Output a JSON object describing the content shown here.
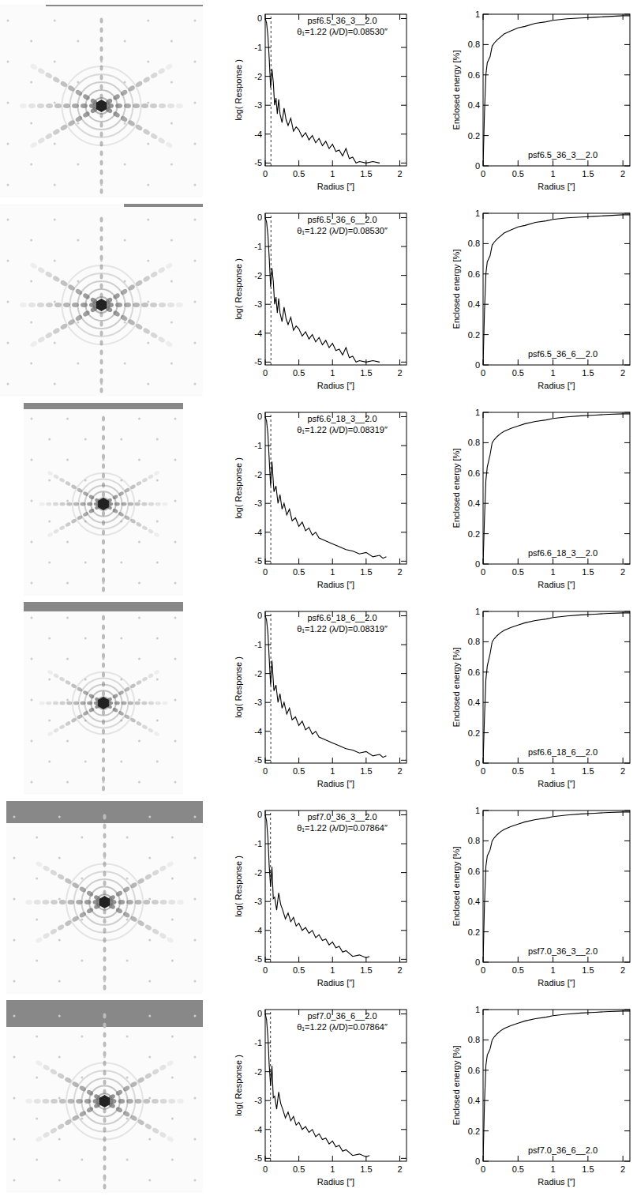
{
  "chart_data": [
    {
      "type": "line",
      "title": "psf6.5_36_3__2.0",
      "subtitle": "θ₁=1.22 (λ/D)=0.08530″",
      "x_label": "Radius   [″]",
      "y_label": "log( Response )",
      "x": [
        0,
        0.02,
        0.04,
        0.06,
        0.08,
        0.1,
        0.12,
        0.14,
        0.16,
        0.18,
        0.2,
        0.22,
        0.25,
        0.28,
        0.31,
        0.34,
        0.38,
        0.42,
        0.46,
        0.5,
        0.55,
        0.6,
        0.65,
        0.7,
        0.75,
        0.8,
        0.85,
        0.9,
        0.95,
        1.0,
        1.05,
        1.1,
        1.15,
        1.2,
        1.25,
        1.3,
        1.35,
        1.4,
        1.5,
        1.6,
        1.7
      ],
      "values": [
        0,
        -0.15,
        -0.6,
        -1.4,
        -2.4,
        -1.75,
        -2.2,
        -3.0,
        -2.75,
        -3.3,
        -2.8,
        -3.3,
        -3.6,
        -3.1,
        -3.5,
        -3.7,
        -3.45,
        -3.9,
        -3.75,
        -3.85,
        -4.1,
        -3.95,
        -4.2,
        -4.05,
        -4.3,
        -4.15,
        -4.4,
        -4.25,
        -4.5,
        -4.35,
        -4.6,
        -4.55,
        -4.75,
        -4.5,
        -4.85,
        -4.8,
        -5.0,
        -4.95,
        -5.0,
        -4.95,
        -5.0
      ],
      "xlim": [
        0,
        2.1
      ],
      "ylim": [
        -5.1,
        0.15
      ],
      "xticks": [
        0,
        0.5,
        1,
        1.5,
        2
      ],
      "yticks": [
        -5,
        -4,
        -3,
        -2,
        -1,
        0
      ],
      "theta_1": 0.0853
    },
    {
      "type": "line",
      "title": "psf6.5_36_3__2.0",
      "x_label": "Radius   [″]",
      "y_label": "Enclosed energy   [%]",
      "x": [
        0,
        0.02,
        0.04,
        0.06,
        0.08,
        0.1,
        0.13,
        0.16,
        0.2,
        0.25,
        0.3,
        0.4,
        0.5,
        0.6,
        0.75,
        0.9,
        1.0,
        1.2,
        1.4,
        1.6,
        1.8,
        2.0,
        2.1
      ],
      "values": [
        0,
        0.35,
        0.6,
        0.68,
        0.7,
        0.72,
        0.79,
        0.81,
        0.83,
        0.85,
        0.87,
        0.89,
        0.91,
        0.92,
        0.94,
        0.95,
        0.96,
        0.97,
        0.975,
        0.98,
        0.985,
        0.99,
        0.99
      ],
      "xlim": [
        0,
        2.1
      ],
      "ylim": [
        0,
        1
      ],
      "xticks": [
        0,
        0.5,
        1,
        1.5,
        2
      ],
      "yticks": [
        0,
        0.2,
        0.4,
        0.6,
        0.8,
        1
      ]
    },
    {
      "type": "line",
      "title": "psf6.5_36_6__2.0",
      "subtitle": "θ₁=1.22 (λ/D)=0.08530″",
      "x_label": "Radius   [″]",
      "y_label": "log( Response )",
      "x": [
        0,
        0.02,
        0.04,
        0.06,
        0.08,
        0.1,
        0.12,
        0.14,
        0.16,
        0.18,
        0.2,
        0.22,
        0.25,
        0.28,
        0.31,
        0.34,
        0.38,
        0.42,
        0.46,
        0.5,
        0.55,
        0.6,
        0.65,
        0.7,
        0.75,
        0.8,
        0.85,
        0.9,
        0.95,
        1.0,
        1.05,
        1.1,
        1.15,
        1.2,
        1.25,
        1.3,
        1.35,
        1.4,
        1.5,
        1.6,
        1.7
      ],
      "values": [
        0,
        -0.15,
        -0.6,
        -1.4,
        -2.4,
        -1.75,
        -2.2,
        -3.0,
        -2.75,
        -3.3,
        -2.8,
        -3.3,
        -3.6,
        -3.1,
        -3.5,
        -3.7,
        -3.45,
        -3.9,
        -3.75,
        -3.85,
        -4.1,
        -3.95,
        -4.2,
        -4.05,
        -4.3,
        -4.15,
        -4.4,
        -4.25,
        -4.5,
        -4.35,
        -4.6,
        -4.55,
        -4.75,
        -4.5,
        -4.85,
        -4.8,
        -5.0,
        -4.95,
        -5.0,
        -4.95,
        -5.0
      ],
      "xlim": [
        0,
        2.1
      ],
      "ylim": [
        -5.1,
        0.15
      ],
      "xticks": [
        0,
        0.5,
        1,
        1.5,
        2
      ],
      "yticks": [
        -5,
        -4,
        -3,
        -2,
        -1,
        0
      ],
      "theta_1": 0.0853
    },
    {
      "type": "line",
      "title": "psf6.5_36_6__2.0",
      "x_label": "Radius   [″]",
      "y_label": "Enclosed energy   [%]",
      "x": [
        0,
        0.02,
        0.04,
        0.06,
        0.08,
        0.1,
        0.13,
        0.16,
        0.2,
        0.25,
        0.3,
        0.4,
        0.5,
        0.6,
        0.75,
        0.9,
        1.0,
        1.2,
        1.4,
        1.6,
        1.8,
        2.0,
        2.1
      ],
      "values": [
        0,
        0.35,
        0.6,
        0.68,
        0.7,
        0.72,
        0.79,
        0.81,
        0.83,
        0.85,
        0.87,
        0.89,
        0.91,
        0.92,
        0.94,
        0.95,
        0.96,
        0.97,
        0.975,
        0.98,
        0.985,
        0.99,
        0.99
      ],
      "xlim": [
        0,
        2.1
      ],
      "ylim": [
        0,
        1
      ],
      "xticks": [
        0,
        0.5,
        1,
        1.5,
        2
      ],
      "yticks": [
        0,
        0.2,
        0.4,
        0.6,
        0.8,
        1
      ]
    },
    {
      "type": "line",
      "title": "psf6.6_18_3__2.0",
      "subtitle": "θ₁=1.22 (λ/D)=0.08319″",
      "x_label": "Radius   [″]",
      "y_label": "log( Response )",
      "x": [
        0,
        0.02,
        0.04,
        0.06,
        0.08,
        0.1,
        0.13,
        0.16,
        0.19,
        0.22,
        0.25,
        0.28,
        0.32,
        0.36,
        0.4,
        0.45,
        0.5,
        0.55,
        0.6,
        0.65,
        0.7,
        0.75,
        0.8,
        0.9,
        1.0,
        1.1,
        1.2,
        1.3,
        1.4,
        1.5,
        1.6,
        1.7,
        1.75,
        1.8
      ],
      "values": [
        0,
        -0.15,
        -0.6,
        -1.5,
        -2.4,
        -1.55,
        -2.6,
        -2.4,
        -3.0,
        -2.7,
        -3.2,
        -3.0,
        -3.4,
        -3.2,
        -3.6,
        -3.5,
        -3.8,
        -3.65,
        -3.95,
        -3.85,
        -4.1,
        -4.0,
        -4.2,
        -4.3,
        -4.4,
        -4.5,
        -4.6,
        -4.65,
        -4.75,
        -4.7,
        -4.85,
        -4.8,
        -4.9,
        -4.85
      ],
      "xlim": [
        0,
        2.1
      ],
      "ylim": [
        -5.1,
        0.15
      ],
      "xticks": [
        0,
        0.5,
        1,
        1.5,
        2
      ],
      "yticks": [
        -5,
        -4,
        -3,
        -2,
        -1,
        0
      ],
      "theta_1": 0.08319
    },
    {
      "type": "line",
      "title": "psf6.6_18_3__2.0",
      "x_label": "Radius   [″]",
      "y_label": "Enclosed energy   [%]",
      "x": [
        0,
        0.02,
        0.04,
        0.06,
        0.08,
        0.1,
        0.13,
        0.16,
        0.2,
        0.25,
        0.3,
        0.4,
        0.5,
        0.6,
        0.75,
        0.9,
        1.0,
        1.2,
        1.4,
        1.6,
        1.8,
        2.0,
        2.1
      ],
      "values": [
        0,
        0.3,
        0.55,
        0.64,
        0.68,
        0.72,
        0.8,
        0.82,
        0.84,
        0.86,
        0.875,
        0.895,
        0.91,
        0.925,
        0.94,
        0.95,
        0.96,
        0.97,
        0.977,
        0.982,
        0.987,
        0.99,
        0.99
      ],
      "xlim": [
        0,
        2.1
      ],
      "ylim": [
        0,
        1
      ],
      "xticks": [
        0,
        0.5,
        1,
        1.5,
        2
      ],
      "yticks": [
        0,
        0.2,
        0.4,
        0.6,
        0.8,
        1
      ]
    },
    {
      "type": "line",
      "title": "psf6.6_18_6__2.0",
      "subtitle": "θ₁=1.22 (λ/D)=0.08319″",
      "x_label": "Radius   [″]",
      "y_label": "log( Response )",
      "x": [
        0,
        0.02,
        0.04,
        0.06,
        0.08,
        0.1,
        0.13,
        0.16,
        0.19,
        0.22,
        0.25,
        0.28,
        0.32,
        0.36,
        0.4,
        0.45,
        0.5,
        0.55,
        0.6,
        0.65,
        0.7,
        0.75,
        0.8,
        0.9,
        1.0,
        1.1,
        1.2,
        1.3,
        1.4,
        1.5,
        1.6,
        1.7,
        1.75,
        1.8
      ],
      "values": [
        0,
        -0.15,
        -0.6,
        -1.5,
        -2.4,
        -1.55,
        -2.6,
        -2.4,
        -3.0,
        -2.7,
        -3.2,
        -3.0,
        -3.4,
        -3.2,
        -3.6,
        -3.5,
        -3.8,
        -3.65,
        -3.95,
        -3.85,
        -4.1,
        -4.0,
        -4.2,
        -4.3,
        -4.4,
        -4.5,
        -4.6,
        -4.65,
        -4.75,
        -4.7,
        -4.85,
        -4.8,
        -4.9,
        -4.85
      ],
      "xlim": [
        0,
        2.1
      ],
      "ylim": [
        -5.1,
        0.15
      ],
      "xticks": [
        0,
        0.5,
        1,
        1.5,
        2
      ],
      "yticks": [
        -5,
        -4,
        -3,
        -2,
        -1,
        0
      ],
      "theta_1": 0.08319
    },
    {
      "type": "line",
      "title": "psf6.6_18_6__2.0",
      "x_label": "Radius   [″]",
      "y_label": "Enclosed energy   [%]",
      "x": [
        0,
        0.02,
        0.04,
        0.06,
        0.08,
        0.1,
        0.13,
        0.16,
        0.2,
        0.25,
        0.3,
        0.4,
        0.5,
        0.6,
        0.75,
        0.9,
        1.0,
        1.2,
        1.4,
        1.6,
        1.8,
        2.0,
        2.1
      ],
      "values": [
        0,
        0.3,
        0.55,
        0.64,
        0.68,
        0.72,
        0.8,
        0.82,
        0.84,
        0.86,
        0.875,
        0.895,
        0.91,
        0.925,
        0.94,
        0.95,
        0.96,
        0.97,
        0.977,
        0.982,
        0.987,
        0.99,
        0.99
      ],
      "xlim": [
        0,
        2.1
      ],
      "ylim": [
        0,
        1
      ],
      "xticks": [
        0,
        0.5,
        1,
        1.5,
        2
      ],
      "yticks": [
        0,
        0.2,
        0.4,
        0.6,
        0.8,
        1
      ]
    },
    {
      "type": "line",
      "title": "psf7.0_36_3__2.0",
      "subtitle": "θ₁=1.22 (λ/D)=0.07864″",
      "x_label": "Radius   [″]",
      "y_label": "log( Response )",
      "x": [
        0,
        0.02,
        0.04,
        0.06,
        0.08,
        0.1,
        0.12,
        0.14,
        0.17,
        0.2,
        0.23,
        0.26,
        0.3,
        0.34,
        0.38,
        0.42,
        0.46,
        0.5,
        0.55,
        0.6,
        0.65,
        0.7,
        0.75,
        0.8,
        0.85,
        0.9,
        0.95,
        1.0,
        1.05,
        1.1,
        1.15,
        1.2,
        1.3,
        1.4,
        1.5,
        1.55
      ],
      "values": [
        0,
        -0.2,
        -0.8,
        -1.8,
        -2.5,
        -1.8,
        -2.9,
        -2.85,
        -3.3,
        -2.7,
        -3.1,
        -3.3,
        -3.6,
        -3.4,
        -3.7,
        -3.55,
        -3.85,
        -3.75,
        -4.0,
        -3.9,
        -4.1,
        -4.0,
        -4.25,
        -4.15,
        -4.35,
        -4.3,
        -4.5,
        -4.4,
        -4.6,
        -4.55,
        -4.75,
        -4.7,
        -4.9,
        -4.85,
        -4.95,
        -4.9
      ],
      "xlim": [
        0,
        2.1
      ],
      "ylim": [
        -5.1,
        0.15
      ],
      "xticks": [
        0,
        0.5,
        1,
        1.5,
        2
      ],
      "yticks": [
        -5,
        -4,
        -3,
        -2,
        -1,
        0
      ],
      "theta_1": 0.07864
    },
    {
      "type": "line",
      "title": "psf7.0_36_3__2.0",
      "x_label": "Radius   [″]",
      "y_label": "Enclosed energy   [%]",
      "x": [
        0,
        0.02,
        0.04,
        0.06,
        0.08,
        0.1,
        0.13,
        0.16,
        0.2,
        0.25,
        0.3,
        0.4,
        0.5,
        0.6,
        0.75,
        0.9,
        1.0,
        1.2,
        1.4,
        1.6,
        1.8,
        2.0,
        2.1
      ],
      "values": [
        0,
        0.38,
        0.63,
        0.7,
        0.72,
        0.74,
        0.8,
        0.82,
        0.84,
        0.86,
        0.875,
        0.895,
        0.91,
        0.925,
        0.94,
        0.95,
        0.96,
        0.97,
        0.977,
        0.982,
        0.987,
        0.99,
        0.99
      ],
      "xlim": [
        0,
        2.1
      ],
      "ylim": [
        0,
        1
      ],
      "xticks": [
        0,
        0.5,
        1,
        1.5,
        2
      ],
      "yticks": [
        0,
        0.2,
        0.4,
        0.6,
        0.8,
        1
      ]
    },
    {
      "type": "line",
      "title": "psf7.0_36_6__2.0",
      "subtitle": "θ₁=1.22 (λ/D)=0.07864″",
      "x_label": "Radius   [″]",
      "y_label": "log( Response )",
      "x": [
        0,
        0.02,
        0.04,
        0.06,
        0.08,
        0.1,
        0.12,
        0.14,
        0.17,
        0.2,
        0.23,
        0.26,
        0.3,
        0.34,
        0.38,
        0.42,
        0.46,
        0.5,
        0.55,
        0.6,
        0.65,
        0.7,
        0.75,
        0.8,
        0.85,
        0.9,
        0.95,
        1.0,
        1.05,
        1.1,
        1.15,
        1.2,
        1.3,
        1.4,
        1.5,
        1.55
      ],
      "values": [
        0,
        -0.2,
        -0.8,
        -1.8,
        -2.5,
        -1.8,
        -2.9,
        -2.85,
        -3.3,
        -2.7,
        -3.1,
        -3.3,
        -3.6,
        -3.4,
        -3.7,
        -3.55,
        -3.85,
        -3.75,
        -4.0,
        -3.9,
        -4.1,
        -4.0,
        -4.25,
        -4.15,
        -4.35,
        -4.3,
        -4.5,
        -4.4,
        -4.6,
        -4.55,
        -4.75,
        -4.7,
        -4.9,
        -4.85,
        -4.95,
        -4.9
      ],
      "xlim": [
        0,
        2.1
      ],
      "ylim": [
        -5.1,
        0.15
      ],
      "xticks": [
        0,
        0.5,
        1,
        1.5,
        2
      ],
      "yticks": [
        -5,
        -4,
        -3,
        -2,
        -1,
        0
      ],
      "theta_1": 0.07864
    },
    {
      "type": "line",
      "title": "psf7.0_36_6__2.0",
      "x_label": "Radius   [″]",
      "y_label": "Enclosed energy   [%]",
      "x": [
        0,
        0.02,
        0.04,
        0.06,
        0.08,
        0.1,
        0.13,
        0.16,
        0.2,
        0.25,
        0.3,
        0.4,
        0.5,
        0.6,
        0.75,
        0.9,
        1.0,
        1.2,
        1.4,
        1.6,
        1.8,
        2.0,
        2.1
      ],
      "values": [
        0,
        0.38,
        0.63,
        0.7,
        0.72,
        0.74,
        0.8,
        0.82,
        0.84,
        0.86,
        0.875,
        0.895,
        0.91,
        0.925,
        0.94,
        0.95,
        0.96,
        0.97,
        0.977,
        0.982,
        0.987,
        0.99,
        0.99
      ],
      "xlim": [
        0,
        2.1
      ],
      "ylim": [
        0,
        1
      ],
      "xticks": [
        0,
        0.5,
        1,
        1.5,
        2
      ],
      "yticks": [
        0,
        0.2,
        0.4,
        0.6,
        0.8,
        1
      ]
    }
  ]
}
